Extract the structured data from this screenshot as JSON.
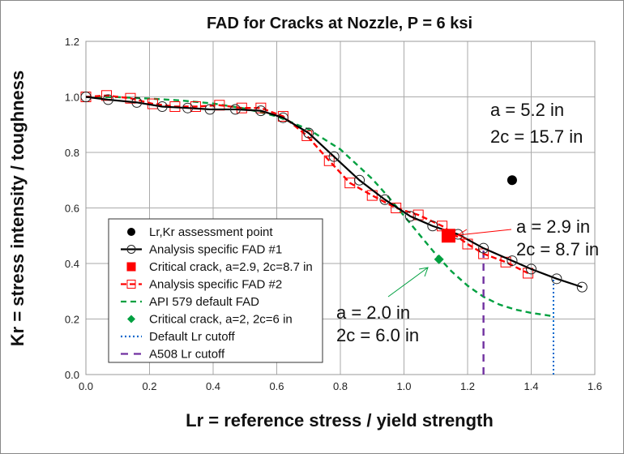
{
  "chart_data": {
    "type": "line",
    "title": "FAD for Cracks at Nozzle, P = 6 ksi",
    "xlabel": "Lr = reference stress / yield strength",
    "ylabel": "Kr = stress intensity / toughness",
    "xlim": [
      0,
      1.6
    ],
    "ylim": [
      0,
      1.2
    ],
    "xticks": [
      "0.0",
      "0.2",
      "0.4",
      "0.6",
      "0.8",
      "1.0",
      "1.2",
      "1.4",
      "1.6"
    ],
    "yticks": [
      "0.0",
      "0.2",
      "0.4",
      "0.6",
      "0.8",
      "1.0",
      "1.2"
    ],
    "grid": true,
    "legend_position": "bottom-left",
    "series": [
      {
        "name": "Lr,Kr assessment point",
        "style": "marker",
        "color": "#000000",
        "marker": "dot",
        "x": [
          1.34
        ],
        "y": [
          0.7
        ]
      },
      {
        "name": "Analysis specific FAD #1",
        "style": "solid-line-open-circle",
        "color": "#000000",
        "x": [
          0,
          0.07,
          0.16,
          0.24,
          0.32,
          0.39,
          0.47,
          0.55,
          0.62,
          0.7,
          0.78,
          0.86,
          0.94,
          1.02,
          1.09,
          1.17,
          1.25,
          1.34,
          1.4,
          1.48,
          1.56
        ],
        "y": [
          1.0,
          0.99,
          0.98,
          0.965,
          0.96,
          0.955,
          0.955,
          0.95,
          0.925,
          0.87,
          0.785,
          0.7,
          0.63,
          0.57,
          0.535,
          0.505,
          0.455,
          0.41,
          0.38,
          0.345,
          0.315
        ]
      },
      {
        "name": "Critical crack, a=2.9, 2c=8.7 in",
        "style": "marker",
        "color": "#ff0000",
        "marker": "square",
        "x": [
          1.14
        ],
        "y": [
          0.5
        ]
      },
      {
        "name": "Analysis specific FAD #2",
        "style": "dashed-line-open-square",
        "color": "#ff0000",
        "x": [
          0,
          0.065,
          0.14,
          0.21,
          0.28,
          0.345,
          0.42,
          0.49,
          0.55,
          0.62,
          0.695,
          0.765,
          0.83,
          0.9,
          0.975,
          1.045,
          1.12,
          1.2,
          1.25,
          1.32,
          1.39
        ],
        "y": [
          1.0,
          1.005,
          0.995,
          0.975,
          0.965,
          0.965,
          0.97,
          0.96,
          0.96,
          0.93,
          0.86,
          0.77,
          0.69,
          0.645,
          0.6,
          0.575,
          0.535,
          0.47,
          0.435,
          0.405,
          0.365
        ]
      },
      {
        "name": "API 579 default FAD",
        "style": "dashed-line",
        "color": "#00a040",
        "x": [
          0,
          0.1,
          0.2,
          0.3,
          0.4,
          0.5,
          0.6,
          0.7,
          0.8,
          0.9,
          0.95,
          1.0,
          1.05,
          1.1,
          1.15,
          1.2,
          1.25,
          1.3,
          1.35,
          1.4,
          1.47
        ],
        "y": [
          1.0,
          0.999,
          0.994,
          0.987,
          0.976,
          0.958,
          0.93,
          0.883,
          0.811,
          0.705,
          0.641,
          0.572,
          0.502,
          0.433,
          0.371,
          0.32,
          0.28,
          0.252,
          0.234,
          0.222,
          0.21
        ]
      },
      {
        "name": "Critical crack, a=2, 2c=6 in",
        "style": "marker",
        "color": "#00a040",
        "marker": "diamond",
        "x": [
          1.11
        ],
        "y": [
          0.415
        ]
      },
      {
        "name": "Default Lr cutoff",
        "style": "dotted-line",
        "color": "#0066cc",
        "x": [
          1.47,
          1.47
        ],
        "y": [
          0,
          0.345
        ]
      },
      {
        "name": "A508 Lr cutoff",
        "style": "long-dash-line",
        "color": "#7030a0",
        "x": [
          1.25,
          1.25
        ],
        "y": [
          0,
          0.455
        ]
      }
    ],
    "annotations": [
      {
        "lines": [
          "a = 5.2 in",
          "2c = 15.7 in"
        ]
      },
      {
        "lines": [
          "a = 2.9 in",
          "2c = 8.7 in"
        ],
        "arrow_color": "#ff0000"
      },
      {
        "lines": [
          "a = 2.0 in",
          "2c = 6.0 in"
        ],
        "arrow_color": "#00a040"
      }
    ]
  }
}
